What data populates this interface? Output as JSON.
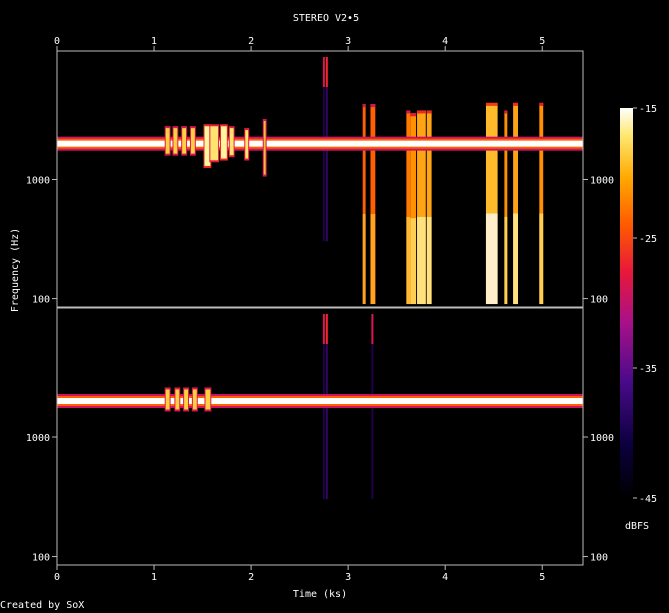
{
  "chart_data": {
    "type": "heatmap",
    "title": "STEREO V2•5",
    "xlabel": "Time (ks)",
    "ylabel": "Frequency (Hz)",
    "footer": "Created by SoX",
    "colorbar_label": "dBFS",
    "x_ticks": [
      "0",
      "1",
      "2",
      "3",
      "4",
      "5"
    ],
    "x_tick_values": [
      0,
      1,
      2,
      3,
      4,
      5
    ],
    "xlim": [
      0,
      5.42
    ],
    "y_ticks": [
      "1000",
      "100"
    ],
    "y_tick_values": [
      1000,
      100
    ],
    "ylim_hz": [
      85,
      12000
    ],
    "y_scale": "log",
    "colorbar_ticks": [
      "-15",
      "-25",
      "-35",
      "-45"
    ],
    "colorbar_tick_values": [
      -15,
      -25,
      -35,
      -45
    ],
    "colorbar_range_dbfs": [
      -45,
      -15
    ],
    "colors": [
      "#000000",
      "#1a0050",
      "#6a0a8a",
      "#c3006a",
      "#ff2a00",
      "#ff9a00",
      "#ffe860",
      "#ffffff"
    ],
    "channels": [
      {
        "name": "upper",
        "tone_hz": 2000,
        "tone_level_dbfs": -15,
        "tone_start": 0.0,
        "tone_end": 5.42,
        "noise_bursts": [
          {
            "x0": 1.12,
            "x1": 1.16,
            "f_lo": 1650,
            "f_hi": 2700,
            "db": -18
          },
          {
            "x0": 1.2,
            "x1": 1.24,
            "f_lo": 1650,
            "f_hi": 2700,
            "db": -18
          },
          {
            "x0": 1.29,
            "x1": 1.33,
            "f_lo": 1650,
            "f_hi": 2700,
            "db": -18
          },
          {
            "x0": 1.38,
            "x1": 1.42,
            "f_lo": 1650,
            "f_hi": 2700,
            "db": -18
          },
          {
            "x0": 1.52,
            "x1": 1.58,
            "f_lo": 1300,
            "f_hi": 2800,
            "db": -16
          },
          {
            "x0": 1.58,
            "x1": 1.66,
            "f_lo": 1450,
            "f_hi": 2800,
            "db": -17
          },
          {
            "x0": 1.69,
            "x1": 1.75,
            "f_lo": 1500,
            "f_hi": 2800,
            "db": -16
          },
          {
            "x0": 1.78,
            "x1": 1.82,
            "f_lo": 1600,
            "f_hi": 2700,
            "db": -17
          },
          {
            "x0": 1.94,
            "x1": 1.97,
            "f_lo": 1500,
            "f_hi": 2600,
            "db": -17
          },
          {
            "x0": 2.13,
            "x1": 2.15,
            "f_lo": 1100,
            "f_hi": 3100,
            "db": -19
          }
        ],
        "tone_bursts": [
          {
            "x0": 3.15,
            "x1": 3.18,
            "f_lo": 90,
            "f_hi": 4300,
            "db": -23
          },
          {
            "x0": 3.23,
            "x1": 3.28,
            "f_lo": 90,
            "f_hi": 4300,
            "db": -23
          },
          {
            "x0": 3.6,
            "x1": 3.64,
            "f_lo": 90,
            "f_hi": 3800,
            "db": -22
          },
          {
            "x0": 3.64,
            "x1": 3.7,
            "f_lo": 90,
            "f_hi": 3600,
            "db": -21
          },
          {
            "x0": 3.71,
            "x1": 3.8,
            "f_lo": 90,
            "f_hi": 3800,
            "db": -20
          },
          {
            "x0": 3.81,
            "x1": 3.86,
            "f_lo": 90,
            "f_hi": 3800,
            "db": -20
          },
          {
            "x0": 4.42,
            "x1": 4.54,
            "f_lo": 90,
            "f_hi": 4400,
            "db": -19
          },
          {
            "x0": 4.61,
            "x1": 4.64,
            "f_lo": 90,
            "f_hi": 3800,
            "db": -21
          },
          {
            "x0": 4.7,
            "x1": 4.75,
            "f_lo": 90,
            "f_hi": 4400,
            "db": -20
          },
          {
            "x0": 4.97,
            "x1": 5.01,
            "f_lo": 90,
            "f_hi": 4400,
            "db": -21
          }
        ],
        "clicks": [
          {
            "x": 2.75,
            "db": -40
          },
          {
            "x": 2.78,
            "db": -38
          }
        ]
      },
      {
        "name": "lower",
        "tone_hz": 2000,
        "tone_level_dbfs": -15,
        "tone_start": 0.0,
        "tone_end": 5.42,
        "noise_bursts": [
          {
            "x0": 1.12,
            "x1": 1.16,
            "f_lo": 1700,
            "f_hi": 2500,
            "db": -18
          },
          {
            "x0": 1.22,
            "x1": 1.26,
            "f_lo": 1700,
            "f_hi": 2500,
            "db": -18
          },
          {
            "x0": 1.31,
            "x1": 1.35,
            "f_lo": 1700,
            "f_hi": 2500,
            "db": -18
          },
          {
            "x0": 1.4,
            "x1": 1.44,
            "f_lo": 1700,
            "f_hi": 2500,
            "db": -18
          },
          {
            "x0": 1.53,
            "x1": 1.58,
            "f_lo": 1700,
            "f_hi": 2500,
            "db": -18
          }
        ],
        "tone_bursts": [],
        "clicks": [
          {
            "x": 2.75,
            "db": -40
          },
          {
            "x": 2.78,
            "db": -38
          },
          {
            "x": 3.25,
            "db": -40
          }
        ]
      }
    ]
  }
}
